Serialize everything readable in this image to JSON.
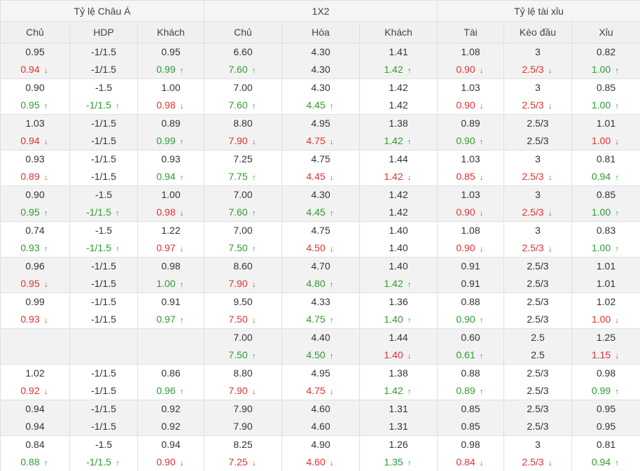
{
  "header": {
    "groups": [
      "Tỷ lệ Châu Á",
      "1X2",
      "Tỷ lệ tài xỉu"
    ],
    "columns": [
      "Chủ",
      "HDP",
      "Khách",
      "Chủ",
      "Hòa",
      "Khách",
      "Tài",
      "Kèo đầu",
      "Xỉu"
    ]
  },
  "colors": {
    "up": "#2e9b2e",
    "down": "#e03030",
    "neutral": "#333333"
  },
  "rows": [
    [
      [
        "0.95",
        [
          "0.94",
          "down"
        ]
      ],
      [
        "-1/1.5",
        [
          "-1/1.5",
          ""
        ]
      ],
      [
        "0.95",
        [
          "0.99",
          "up"
        ]
      ],
      [
        "6.60",
        [
          "7.60",
          "up"
        ]
      ],
      [
        "4.30",
        [
          "4.30",
          ""
        ]
      ],
      [
        "1.41",
        [
          "1.42",
          "up"
        ]
      ],
      [
        "1.08",
        [
          "0.90",
          "down"
        ]
      ],
      [
        "3",
        [
          "2.5/3",
          "down"
        ]
      ],
      [
        "0.82",
        [
          "1.00",
          "up"
        ]
      ]
    ],
    [
      [
        "0.90",
        [
          "0.95",
          "up"
        ]
      ],
      [
        "-1.5",
        [
          "-1/1.5",
          "up"
        ]
      ],
      [
        "1.00",
        [
          "0.98",
          "down"
        ]
      ],
      [
        "7.00",
        [
          "7.60",
          "up"
        ]
      ],
      [
        "4.30",
        [
          "4.45",
          "up"
        ]
      ],
      [
        "1.42",
        [
          "1.42",
          ""
        ]
      ],
      [
        "1.03",
        [
          "0.90",
          "down"
        ]
      ],
      [
        "3",
        [
          "2.5/3",
          "down"
        ]
      ],
      [
        "0.85",
        [
          "1.00",
          "up"
        ]
      ]
    ],
    [
      [
        "1.03",
        [
          "0.94",
          "down"
        ]
      ],
      [
        "-1/1.5",
        [
          "-1/1.5",
          ""
        ]
      ],
      [
        "0.89",
        [
          "0.99",
          "up"
        ]
      ],
      [
        "8.80",
        [
          "7.90",
          "down"
        ]
      ],
      [
        "4.95",
        [
          "4.75",
          "down"
        ]
      ],
      [
        "1.38",
        [
          "1.42",
          "up"
        ]
      ],
      [
        "0.89",
        [
          "0.90",
          "up"
        ]
      ],
      [
        "2.5/3",
        [
          "2.5/3",
          ""
        ]
      ],
      [
        "1.01",
        [
          "1.00",
          "down"
        ]
      ]
    ],
    [
      [
        "0.93",
        [
          "0.89",
          "down"
        ]
      ],
      [
        "-1/1.5",
        [
          "-1/1.5",
          ""
        ]
      ],
      [
        "0.93",
        [
          "0.94",
          "up"
        ]
      ],
      [
        "7.25",
        [
          "7.75",
          "up"
        ]
      ],
      [
        "4.75",
        [
          "4.45",
          "down"
        ]
      ],
      [
        "1.44",
        [
          "1.42",
          "down"
        ]
      ],
      [
        "1.03",
        [
          "0.85",
          "down"
        ]
      ],
      [
        "3",
        [
          "2.5/3",
          "down"
        ]
      ],
      [
        "0.81",
        [
          "0.94",
          "up"
        ]
      ]
    ],
    [
      [
        "0.90",
        [
          "0.95",
          "up"
        ]
      ],
      [
        "-1.5",
        [
          "-1/1.5",
          "up"
        ]
      ],
      [
        "1.00",
        [
          "0.98",
          "down"
        ]
      ],
      [
        "7.00",
        [
          "7.60",
          "up"
        ]
      ],
      [
        "4.30",
        [
          "4.45",
          "up"
        ]
      ],
      [
        "1.42",
        [
          "1.42",
          ""
        ]
      ],
      [
        "1.03",
        [
          "0.90",
          "down"
        ]
      ],
      [
        "3",
        [
          "2.5/3",
          "down"
        ]
      ],
      [
        "0.85",
        [
          "1.00",
          "up"
        ]
      ]
    ],
    [
      [
        "0.74",
        [
          "0.93",
          "up"
        ]
      ],
      [
        "-1.5",
        [
          "-1/1.5",
          "up"
        ]
      ],
      [
        "1.22",
        [
          "0.97",
          "down"
        ]
      ],
      [
        "7.00",
        [
          "7.50",
          "up"
        ]
      ],
      [
        "4.75",
        [
          "4.50",
          "down"
        ]
      ],
      [
        "1.40",
        [
          "1.40",
          ""
        ]
      ],
      [
        "1.08",
        [
          "0.90",
          "down"
        ]
      ],
      [
        "3",
        [
          "2.5/3",
          "down"
        ]
      ],
      [
        "0.83",
        [
          "1.00",
          "up"
        ]
      ]
    ],
    [
      [
        "0.96",
        [
          "0.95",
          "down"
        ]
      ],
      [
        "-1/1.5",
        [
          "-1/1.5",
          ""
        ]
      ],
      [
        "0.98",
        [
          "1.00",
          "up"
        ]
      ],
      [
        "8.60",
        [
          "7.90",
          "down"
        ]
      ],
      [
        "4.70",
        [
          "4.80",
          "up"
        ]
      ],
      [
        "1.40",
        [
          "1.42",
          "up"
        ]
      ],
      [
        "0.91",
        [
          "0.91",
          ""
        ]
      ],
      [
        "2.5/3",
        [
          "2.5/3",
          ""
        ]
      ],
      [
        "1.01",
        [
          "1.01",
          ""
        ]
      ]
    ],
    [
      [
        "0.99",
        [
          "0.93",
          "down"
        ]
      ],
      [
        "-1/1.5",
        [
          "-1/1.5",
          ""
        ]
      ],
      [
        "0.91",
        [
          "0.97",
          "up"
        ]
      ],
      [
        "9.50",
        [
          "7.50",
          "down"
        ]
      ],
      [
        "4.33",
        [
          "4.75",
          "up"
        ]
      ],
      [
        "1.36",
        [
          "1.40",
          "up"
        ]
      ],
      [
        "0.88",
        [
          "0.90",
          "up"
        ]
      ],
      [
        "2.5/3",
        [
          "2.5/3",
          ""
        ]
      ],
      [
        "1.02",
        [
          "1.00",
          "down"
        ]
      ]
    ],
    [
      [
        "",
        [
          "",
          ""
        ]
      ],
      [
        "",
        [
          "",
          ""
        ]
      ],
      [
        "",
        [
          "",
          ""
        ]
      ],
      [
        "7.00",
        [
          "7.50",
          "up"
        ]
      ],
      [
        "4.40",
        [
          "4.50",
          "up"
        ]
      ],
      [
        "1.44",
        [
          "1.40",
          "down"
        ]
      ],
      [
        "0.60",
        [
          "0.61",
          "up"
        ]
      ],
      [
        "2.5",
        [
          "2.5",
          ""
        ]
      ],
      [
        "1.25",
        [
          "1.15",
          "down"
        ]
      ]
    ],
    [
      [
        "1.02",
        [
          "0.92",
          "down"
        ]
      ],
      [
        "-1/1.5",
        [
          "-1/1.5",
          ""
        ]
      ],
      [
        "0.86",
        [
          "0.96",
          "up"
        ]
      ],
      [
        "8.80",
        [
          "7.90",
          "down"
        ]
      ],
      [
        "4.95",
        [
          "4.75",
          "down"
        ]
      ],
      [
        "1.38",
        [
          "1.42",
          "up"
        ]
      ],
      [
        "0.88",
        [
          "0.89",
          "up"
        ]
      ],
      [
        "2.5/3",
        [
          "2.5/3",
          ""
        ]
      ],
      [
        "0.98",
        [
          "0.99",
          "up"
        ]
      ]
    ],
    [
      [
        "0.94",
        [
          "0.94",
          ""
        ]
      ],
      [
        "-1/1.5",
        [
          "-1/1.5",
          ""
        ]
      ],
      [
        "0.92",
        [
          "0.92",
          ""
        ]
      ],
      [
        "7.90",
        [
          "7.90",
          ""
        ]
      ],
      [
        "4.60",
        [
          "4.60",
          ""
        ]
      ],
      [
        "1.31",
        [
          "1.31",
          ""
        ]
      ],
      [
        "0.85",
        [
          "0.85",
          ""
        ]
      ],
      [
        "2.5/3",
        [
          "2.5/3",
          ""
        ]
      ],
      [
        "0.95",
        [
          "0.95",
          ""
        ]
      ]
    ],
    [
      [
        "0.84",
        [
          "0.88",
          "up"
        ]
      ],
      [
        "-1.5",
        [
          "-1/1.5",
          "up"
        ]
      ],
      [
        "0.94",
        [
          "0.90",
          "down"
        ]
      ],
      [
        "8.25",
        [
          "7.25",
          "down"
        ]
      ],
      [
        "4.90",
        [
          "4.60",
          "down"
        ]
      ],
      [
        "1.26",
        [
          "1.35",
          "up"
        ]
      ],
      [
        "0.98",
        [
          "0.84",
          "down"
        ]
      ],
      [
        "3",
        [
          "2.5/3",
          "down"
        ]
      ],
      [
        "0.81",
        [
          "0.94",
          "up"
        ]
      ]
    ]
  ]
}
